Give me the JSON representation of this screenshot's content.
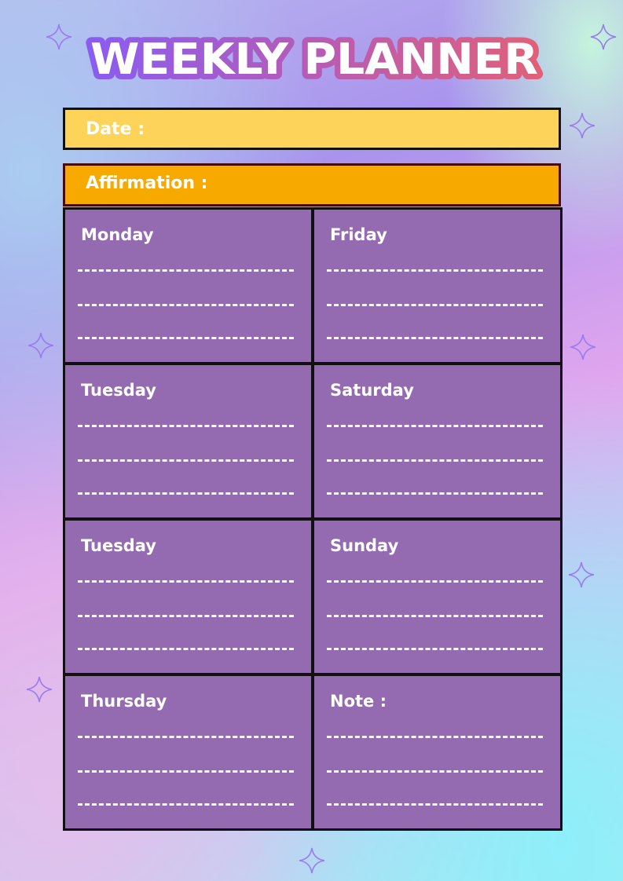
{
  "title": "WEEKLY PLANNER",
  "date_label": "Date :",
  "affirmation_label": "Affirmation :",
  "days": [
    {
      "label": "Monday"
    },
    {
      "label": "Friday"
    },
    {
      "label": "Tuesday"
    },
    {
      "label": "Saturday"
    },
    {
      "label": "Tuesday"
    },
    {
      "label": "Sunday"
    },
    {
      "label": "Thursday"
    },
    {
      "label": "Note :"
    }
  ],
  "colors": {
    "date_bar": "#fdd35a",
    "affirmation_bar": "#f8a900",
    "cell": "#946bb0",
    "title_outline_start": "#8a5cf0",
    "title_outline_end": "#e0607a"
  },
  "decorations": {
    "icon": "sparkle-icon"
  }
}
